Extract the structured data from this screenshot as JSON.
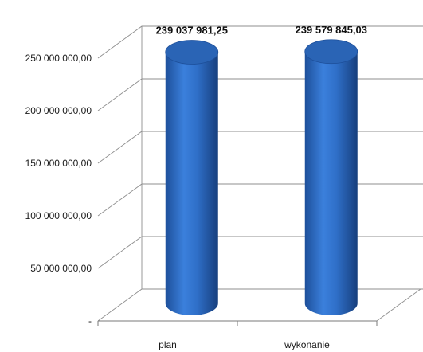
{
  "chart_data": {
    "type": "bar",
    "style": "3d-cylinder",
    "categories": [
      "plan",
      "wykonanie"
    ],
    "values": [
      239037981.25,
      239579845.03
    ],
    "data_labels": [
      "239 037 981,25",
      "239 579 845,03"
    ],
    "title": "",
    "xlabel": "",
    "ylabel": "",
    "ylim": [
      0,
      250000000
    ],
    "y_ticks": [
      0,
      50000000,
      100000000,
      150000000,
      200000000,
      250000000
    ],
    "y_tick_labels": [
      "-",
      "50 000 000,00",
      "100 000 000,00",
      "150 000 000,00",
      "200 000 000,00",
      "250 000 000,00"
    ],
    "grid": true,
    "legend": "none",
    "bar_color": "#2f6fc8",
    "bar_top_color": "#2a64b5"
  }
}
